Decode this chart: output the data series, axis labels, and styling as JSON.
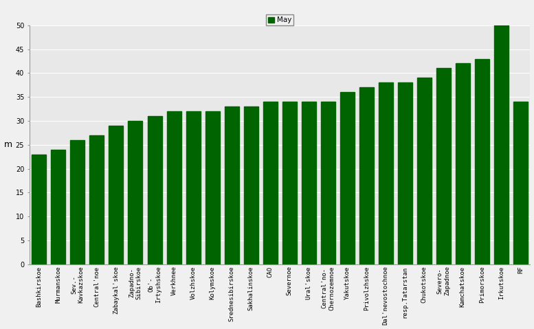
{
  "categories": [
    "Bashkirskoe",
    "Murmanskoe",
    "Sev.-\nKavkazskoe",
    "Central'noe",
    "Zabaykal'skoe",
    "Zapadno-\nSibirskoe",
    "Ob'-\nIrtyshskoe",
    "Verkhnee",
    "Volzhskoe",
    "Kolymskoe",
    "Srednesibirskoe",
    "Sakhalinskoe",
    "CAO",
    "Severnoe",
    "Ural'skoe",
    "Central'no-\nChernozemnoe",
    "Yakutskoe",
    "Privolzhskoe",
    "Dal'nevostochnoe",
    "resp.Tatarstan",
    "Chukotskoe",
    "Severo-\nZapadnoe",
    "Kamchatskoe",
    "Primorskoe",
    "Irkutskoe",
    "RF"
  ],
  "values": [
    23,
    24,
    26,
    27,
    29,
    30,
    31,
    32,
    32,
    32,
    33,
    33,
    34,
    34,
    34,
    34,
    36,
    37,
    38,
    38,
    39,
    41,
    42,
    43,
    50,
    34
  ],
  "bar_color": "#006400",
  "ylabel": "m",
  "ylim": [
    0,
    50
  ],
  "yticks": [
    0,
    5,
    10,
    15,
    20,
    25,
    30,
    35,
    40,
    45,
    50
  ],
  "legend_label": "May",
  "legend_color": "#006400",
  "fig_bg_color": "#f0f0f0",
  "plot_bg_color": "#e8e8e8",
  "grid_color": "#ffffff",
  "tick_fontsize": 7,
  "ylabel_fontsize": 9
}
